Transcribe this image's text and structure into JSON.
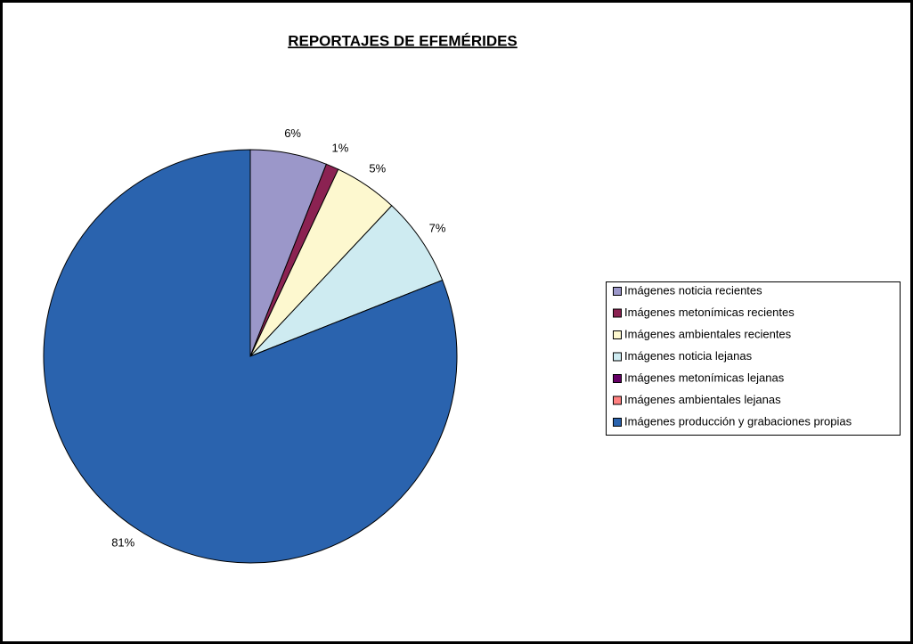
{
  "chart_data": {
    "type": "pie",
    "title": "REPORTAJES DE EFEMÉRIDES",
    "categories": [
      "Imágenes noticia recientes",
      "Imágenes metonímicas recientes",
      "Imágenes ambientales recientes",
      "Imágenes noticia lejanas",
      "Imágenes metonímicas lejanas",
      "Imágenes ambientales lejanas",
      "Imágenes producción y grabaciones propias"
    ],
    "values": [
      6,
      1,
      5,
      7,
      0,
      0,
      81
    ],
    "value_labels": [
      "6%",
      "1%",
      "5%",
      "7%",
      null,
      null,
      "81%"
    ],
    "colors": [
      "#9b97c9",
      "#8b2252",
      "#fdf8cf",
      "#ceebf1",
      "#660066",
      "#ff8080",
      "#2a63ae"
    ],
    "legend": "right"
  }
}
